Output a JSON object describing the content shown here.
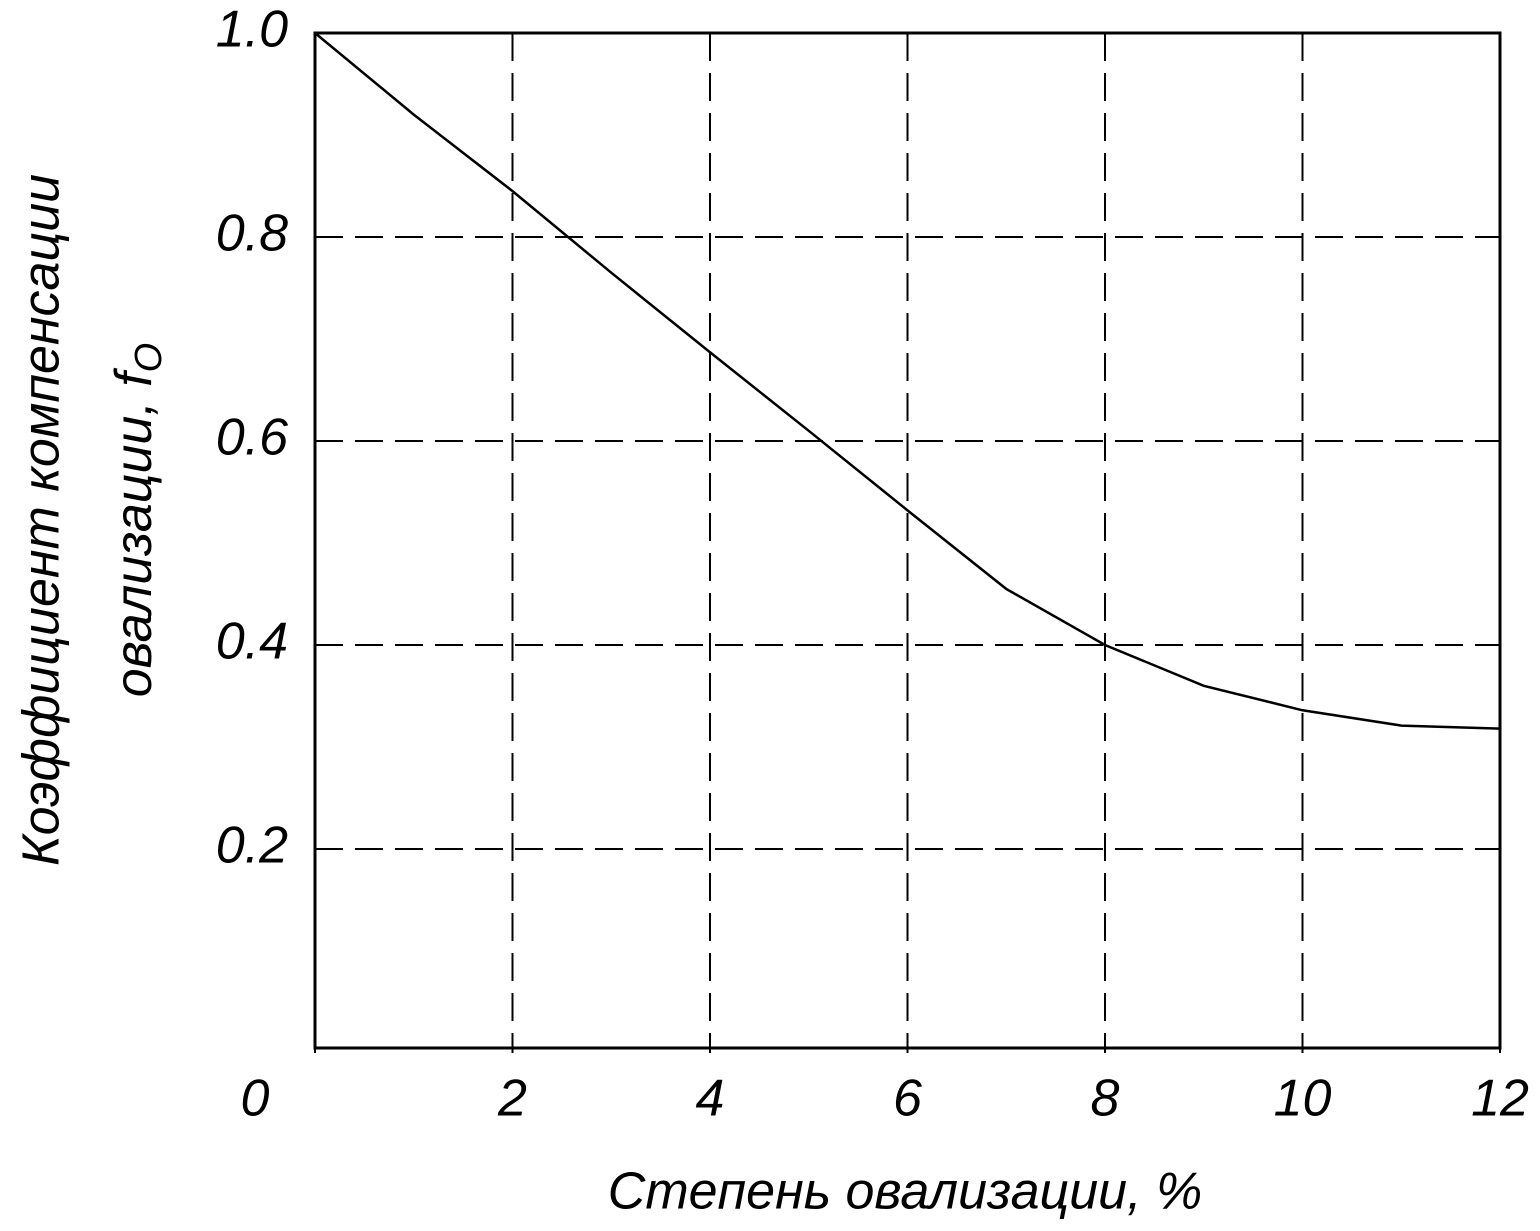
{
  "chart_data": {
    "type": "line",
    "x_label": "Степень овализации, %",
    "y_label": [
      "Коэффициент компенсации",
      "овализации, f"
    ],
    "y_label_subscript": "O",
    "x": [
      0,
      1,
      2,
      3,
      4,
      5,
      6,
      7,
      8,
      9,
      10,
      11,
      12
    ],
    "series": [
      {
        "color": "#000000",
        "values": [
          1.0,
          0.92,
          0.845,
          0.765,
          0.687,
          0.61,
          0.532,
          0.455,
          0.4,
          0.36,
          0.336,
          0.321,
          0.318
        ]
      }
    ],
    "xlim": [
      0,
      12
    ],
    "xticks": [
      0,
      2,
      4,
      6,
      8,
      10,
      12
    ],
    "ylim": [
      0,
      1
    ],
    "yticks": [
      0.2,
      0.4,
      0.6,
      0.8,
      {
        "value": 1,
        "label": "1.0"
      }
    ],
    "grid": true
  }
}
